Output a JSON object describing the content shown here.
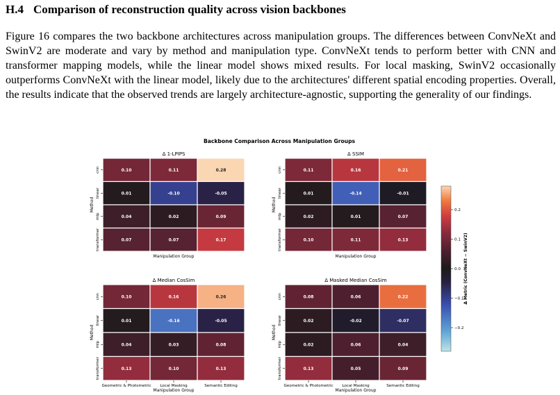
{
  "section": {
    "number": "H.4",
    "title": "Comparison of reconstruction quality across vision backbones"
  },
  "paragraph": "Figure 16 compares the two backbone architectures across manipulation groups. The differences between ConvNeXt and SwinV2 are moderate and vary by method and manipulation type. ConvNeXt tends to perform better with CNN and transformer mapping models, while the linear model shows mixed results. For local masking, SwinV2 occasionally outperforms ConvNeXt with the linear model, likely due to the architectures' different spatial encoding properties. Overall, the results indicate that the observed trends are largely architecture-agnostic, supporting the generality of our findings.",
  "figure_title": "Backbone Comparison Across Manipulation Groups",
  "chart_data": {
    "type": "heatmap",
    "title": "Backbone Comparison Across Manipulation Groups",
    "rows": [
      "cnn",
      "linear",
      "mlp",
      "transformer"
    ],
    "columns": [
      "Geometric & Photometric",
      "Local Masking",
      "Semantic Editing"
    ],
    "xlabel": "Manipulation Group",
    "ylabel": "Method",
    "colorbar": {
      "label": "Δ Metric (ConvNeXt − SwinV2)",
      "range": [
        -0.28,
        0.28
      ],
      "ticks": [
        "0.2",
        "0.1",
        "0.0",
        "−0.1",
        "−0.2"
      ],
      "tick_values": [
        0.2,
        0.1,
        0.0,
        -0.1,
        -0.2
      ]
    },
    "panels": [
      {
        "title": "Δ 1-LPIPS",
        "values": [
          [
            0.1,
            0.11,
            0.28
          ],
          [
            0.01,
            -0.1,
            -0.05
          ],
          [
            0.04,
            0.02,
            0.09
          ],
          [
            0.07,
            0.07,
            0.17
          ]
        ],
        "labels": [
          [
            "0.10",
            "0.11",
            "0.28"
          ],
          [
            "0.01",
            "-0.10",
            "-0.05"
          ],
          [
            "0.04",
            "0.02",
            "0.09"
          ],
          [
            "0.07",
            "0.07",
            "0.17"
          ]
        ]
      },
      {
        "title": "Δ SSIM",
        "values": [
          [
            0.11,
            0.16,
            0.21
          ],
          [
            0.01,
            -0.14,
            -0.01
          ],
          [
            0.02,
            0.01,
            0.07
          ],
          [
            0.1,
            0.11,
            0.13
          ]
        ],
        "labels": [
          [
            "0.11",
            "0.16",
            "0.21"
          ],
          [
            "0.01",
            "-0.14",
            "-0.01"
          ],
          [
            "0.02",
            "0.01",
            "0.07"
          ],
          [
            "0.10",
            "0.11",
            "0.13"
          ]
        ]
      },
      {
        "title": "Δ Median CosSim",
        "values": [
          [
            0.1,
            0.16,
            0.26
          ],
          [
            0.01,
            -0.16,
            -0.05
          ],
          [
            0.04,
            0.03,
            0.08
          ],
          [
            0.13,
            0.1,
            0.13
          ]
        ],
        "labels": [
          [
            "0.10",
            "0.16",
            "0.26"
          ],
          [
            "0.01",
            "-0.16",
            "-0.05"
          ],
          [
            "0.04",
            "0.03",
            "0.08"
          ],
          [
            "0.13",
            "0.10",
            "0.13"
          ]
        ]
      },
      {
        "title": "Δ Masked Median CosSim",
        "values": [
          [
            0.08,
            0.06,
            0.22
          ],
          [
            0.02,
            -0.02,
            -0.07
          ],
          [
            0.02,
            0.06,
            0.04
          ],
          [
            0.13,
            0.05,
            0.09
          ]
        ],
        "labels": [
          [
            "0.08",
            "0.06",
            "0.22"
          ],
          [
            "0.02",
            "-0.02",
            "-0.07"
          ],
          [
            "0.02",
            "0.06",
            "0.04"
          ],
          [
            "0.13",
            "0.05",
            "0.09"
          ]
        ]
      }
    ]
  }
}
